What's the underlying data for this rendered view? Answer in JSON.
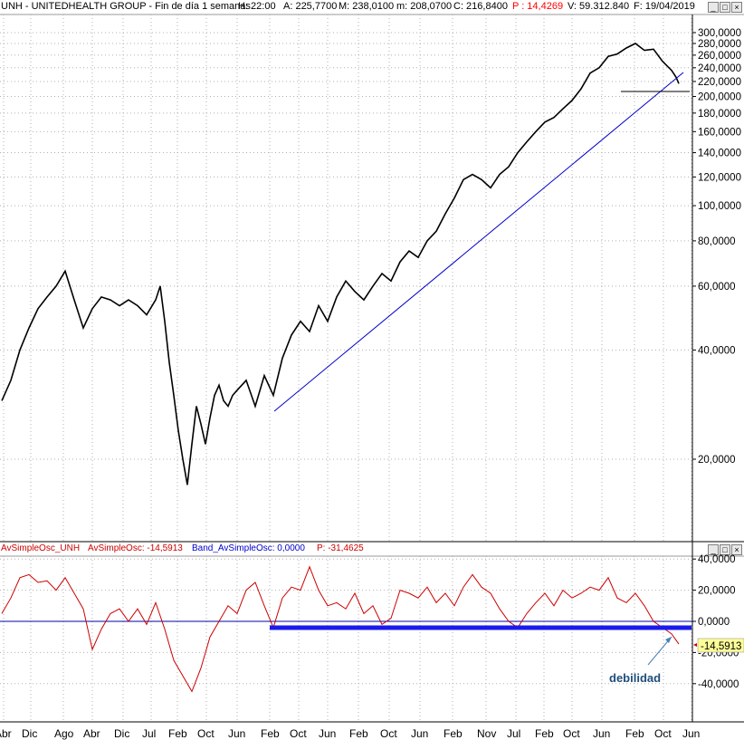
{
  "header": {
    "symbol": "UNH - UNITEDHEALTH GROUP - Fin de día 1 semanas",
    "h": "H: 22:00",
    "a": "A: 225,7700",
    "m": "M: 238,0100",
    "mm": "m: 208,0700",
    "c": "C: 216,8400",
    "p": "P : 14,4269",
    "v": "V: 59.312.840",
    "f": "F: 19/04/2019"
  },
  "lower_header": {
    "osc_name": "AvSimpleOsc_UNH",
    "osc_value": "AvSimpleOsc: -14,5913",
    "band_value": "Band_AvSimpleOsc: 0,0000",
    "p_value": "P: -31,4625"
  },
  "current_value_label": "-14,5913",
  "annotation": "debilidad",
  "colors": {
    "price": "#000000",
    "trend": "#0000cc",
    "osc": "#cc0000",
    "band": "#0000cc",
    "support": "#1a1aee",
    "annotation": "#1f4e79",
    "p_red": "#ff0000"
  },
  "icons": [
    "minimize-icon",
    "restore-icon",
    "close-icon"
  ],
  "chart_data": [
    {
      "type": "line",
      "scale": "log",
      "series": [
        {
          "x": [
            0,
            10,
            20,
            30,
            40,
            50,
            60,
            70,
            80,
            90,
            100,
            110,
            120,
            130,
            140,
            150,
            160,
            170,
            175,
            180,
            185,
            190,
            195,
            200,
            205,
            210,
            215,
            220,
            225,
            230,
            235,
            240,
            245,
            250,
            255,
            260,
            270,
            280,
            290,
            300,
            310,
            320,
            330,
            340,
            350,
            360,
            370,
            380,
            390,
            400,
            410,
            420,
            430,
            440,
            450,
            460,
            470,
            480,
            490,
            500,
            510,
            520,
            530,
            540,
            550,
            560,
            570,
            580,
            590,
            600,
            610,
            620,
            630,
            640,
            650,
            660,
            670,
            680,
            690,
            700,
            710,
            720,
            730,
            740,
            745,
            748
          ],
          "values": [
            29,
            33,
            40,
            46,
            52,
            56,
            60,
            66,
            55,
            46,
            52,
            56,
            55,
            53,
            55,
            53,
            50,
            55,
            60,
            48,
            37,
            30,
            24,
            20,
            17,
            22,
            28,
            25,
            22,
            26,
            30,
            32,
            29,
            28,
            30,
            31,
            33,
            28,
            34,
            30,
            38,
            44,
            48,
            45,
            53,
            48,
            56,
            62,
            58,
            55,
            60,
            65,
            62,
            70,
            75,
            72,
            80,
            85,
            95,
            105,
            118,
            122,
            118,
            112,
            122,
            128,
            140,
            150,
            160,
            170,
            175,
            185,
            195,
            210,
            232,
            240,
            258,
            262,
            272,
            280,
            268,
            270,
            250,
            236,
            226,
            217
          ]
        }
      ],
      "yticks": [
        "300,0000",
        "280,0000",
        "260,0000",
        "240,0000",
        "220,0000",
        "200,0000",
        "180,0000",
        "160,0000",
        "140,0000",
        "120,0000",
        "100,0000",
        "80,0000",
        "60,0000",
        "40,0000",
        "20,0000"
      ],
      "xticks": [
        "Abr",
        "Dic",
        "Ago",
        "Abr",
        "Dic",
        "Jul",
        "Feb",
        "Oct",
        "Jun",
        "Feb",
        "Oct",
        "Jun",
        "Feb",
        "Oct",
        "Jun",
        "Feb",
        "Nov",
        "Jul",
        "Feb",
        "Oct",
        "Jun",
        "Feb",
        "Oct",
        "Jun"
      ]
    },
    {
      "type": "line",
      "series": [
        {
          "x": [
            0,
            10,
            20,
            30,
            40,
            50,
            60,
            70,
            80,
            90,
            100,
            110,
            120,
            130,
            140,
            150,
            160,
            170,
            180,
            190,
            200,
            210,
            220,
            230,
            240,
            250,
            260,
            270,
            280,
            290,
            300,
            310,
            320,
            330,
            340,
            350,
            360,
            370,
            380,
            390,
            400,
            410,
            420,
            430,
            440,
            450,
            460,
            470,
            480,
            490,
            500,
            510,
            520,
            530,
            540,
            550,
            560,
            570,
            580,
            590,
            600,
            610,
            620,
            630,
            640,
            650,
            660,
            670,
            680,
            690,
            700,
            710,
            720,
            730,
            740,
            748
          ],
          "values": [
            5,
            15,
            28,
            30,
            25,
            26,
            20,
            28,
            18,
            8,
            -18,
            -5,
            5,
            8,
            0,
            8,
            -2,
            12,
            -5,
            -25,
            -35,
            -45,
            -30,
            -10,
            0,
            10,
            5,
            20,
            25,
            10,
            -4,
            15,
            22,
            20,
            35,
            20,
            10,
            12,
            8,
            18,
            5,
            10,
            -2,
            2,
            20,
            18,
            15,
            22,
            12,
            18,
            10,
            22,
            30,
            22,
            18,
            8,
            0,
            -4,
            5,
            12,
            18,
            10,
            20,
            15,
            18,
            22,
            20,
            28,
            15,
            12,
            18,
            10,
            0,
            -4,
            -8,
            -14.59
          ],
          "band": 0
        }
      ],
      "yticks": [
        "40,0000",
        "20,0000",
        "0,0000",
        "-20,0000",
        "-40,0000"
      ]
    }
  ]
}
